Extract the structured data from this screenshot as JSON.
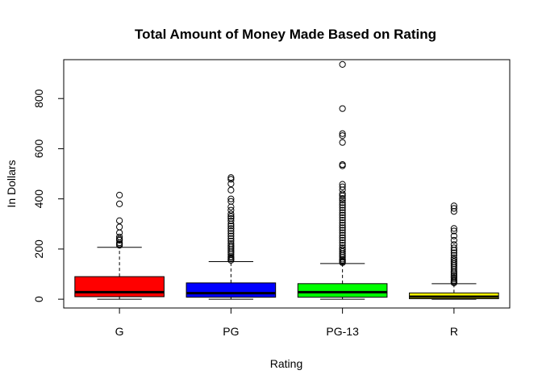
{
  "chart_data": {
    "type": "boxplot",
    "title": "Total Amount of Money Made Based on Rating",
    "xlabel": "Rating",
    "ylabel": "In Dollars",
    "ylim": [
      -35,
      955
    ],
    "yticks": [
      0,
      200,
      400,
      600,
      800
    ],
    "grid": false,
    "categories": [
      "G",
      "PG",
      "PG-13",
      "R"
    ],
    "colors": [
      "#ff0000",
      "#0000ff",
      "#00ff00",
      "#ffff00"
    ],
    "boxes": [
      {
        "category": "G",
        "min": 0,
        "q1": 10,
        "median": 28,
        "q3": 90,
        "max": 207,
        "outliers": [
          415,
          380,
          313,
          288,
          265,
          248,
          240,
          235,
          225,
          220,
          215
        ]
      },
      {
        "category": "PG",
        "min": 0,
        "q1": 8,
        "median": 24,
        "q3": 65,
        "max": 150,
        "outliers": [
          485,
          478,
          460,
          435,
          400,
          390,
          368,
          355,
          340,
          330,
          322,
          312,
          300,
          292,
          282,
          272,
          262,
          252,
          242,
          232,
          222,
          215,
          208,
          200,
          192,
          185,
          178,
          170,
          165,
          160,
          155
        ]
      },
      {
        "category": "PG-13",
        "min": 0,
        "q1": 8,
        "median": 28,
        "q3": 62,
        "max": 142,
        "outliers": [
          936,
          760,
          660,
          652,
          625,
          537,
          532,
          458,
          448,
          436,
          420,
          412,
          402,
          395,
          385,
          375,
          365,
          355,
          345,
          335,
          325,
          315,
          305,
          295,
          285,
          275,
          265,
          255,
          245,
          235,
          225,
          215,
          205,
          198,
          190,
          182,
          175,
          168,
          160,
          155,
          150,
          146
        ]
      },
      {
        "category": "R",
        "min": 0,
        "q1": 2,
        "median": 10,
        "q3": 25,
        "max": 62,
        "outliers": [
          372,
          362,
          350,
          282,
          272,
          252,
          235,
          218,
          205,
          195,
          185,
          175,
          165,
          158,
          150,
          142,
          135,
          128,
          120,
          112,
          105,
          98,
          92,
          86,
          80,
          74,
          69,
          65
        ]
      }
    ]
  }
}
